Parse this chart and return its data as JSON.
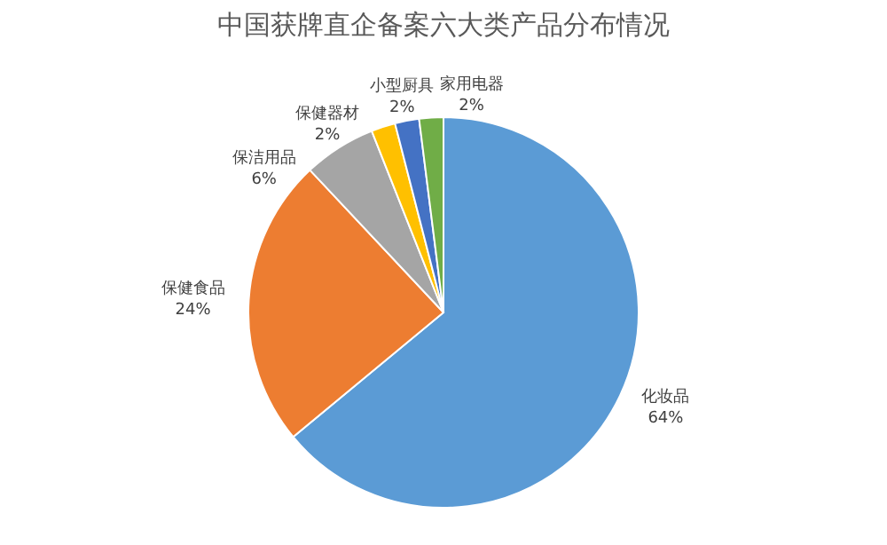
{
  "chart_data": {
    "type": "pie",
    "title": "中国获牌直企备案六大类产品分布情况",
    "categories": [
      "化妆品",
      "保健食品",
      "保洁用品",
      "保健器材",
      "小型厨具",
      "家用电器"
    ],
    "values": [
      64,
      24,
      6,
      2,
      2,
      2
    ],
    "value_labels": [
      "64%",
      "24%",
      "6%",
      "2%",
      "2%",
      "2%"
    ],
    "colors": [
      "#5b9bd5",
      "#ed7d31",
      "#a5a5a5",
      "#ffc000",
      "#4472c4",
      "#70ad47"
    ]
  }
}
